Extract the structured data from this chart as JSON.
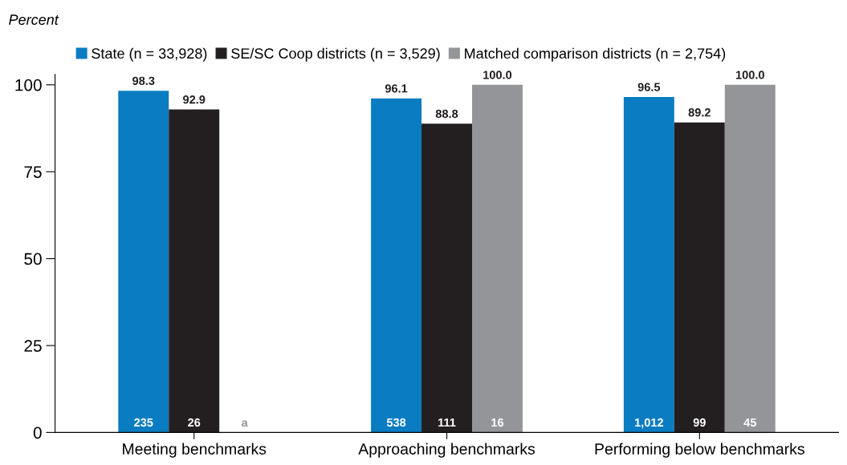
{
  "chart_data": {
    "type": "bar",
    "ylabel": "Percent",
    "categories": [
      "Meeting benchmarks",
      "Approaching benchmarks",
      "Performing below benchmarks"
    ],
    "series": [
      {
        "name": "State (n = 33,928)",
        "color": "#0a7cc1",
        "values": [
          98.3,
          96.1,
          96.5
        ],
        "value_labels": [
          "98.3",
          "96.1",
          "96.5"
        ]
      },
      {
        "name": "SE/SC Coop districts (n = 3,529)",
        "color": "#231f20",
        "values": [
          92.9,
          88.8,
          89.2
        ],
        "value_labels": [
          "92.9",
          "88.8",
          "89.2"
        ]
      },
      {
        "name": "Matched comparison districts (n = 2,754)",
        "color": "#939598",
        "values": [
          null,
          100.0,
          100.0
        ],
        "value_labels": [
          null,
          "100.0",
          "100.0"
        ]
      }
    ],
    "annotations": [
      "235",
      "26",
      "a",
      "538",
      "111",
      "16",
      "1,012",
      "99",
      "45"
    ],
    "ylim": [
      0,
      103
    ],
    "yticks": [
      0,
      25,
      50,
      75,
      100
    ],
    "grid": false,
    "legend": "top"
  }
}
